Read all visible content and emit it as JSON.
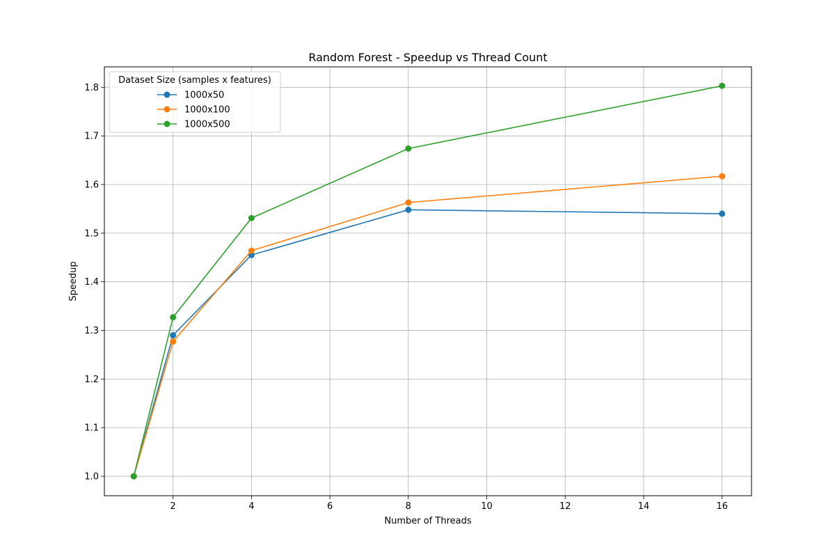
{
  "chart_data": {
    "type": "line",
    "title": "Random Forest - Speedup vs Thread Count",
    "xlabel": "Number of Threads",
    "ylabel": "Speedup",
    "xlim": [
      0.25,
      16.75
    ],
    "ylim": [
      0.96,
      1.842
    ],
    "xticks": [
      2,
      4,
      6,
      8,
      10,
      12,
      14,
      16
    ],
    "yticks": [
      1.0,
      1.1,
      1.2,
      1.3,
      1.4,
      1.5,
      1.6,
      1.7,
      1.8
    ],
    "grid": true,
    "legend": {
      "title": "Dataset Size (samples x features)",
      "position": "top-left"
    },
    "x": [
      1,
      2,
      4,
      8,
      16
    ],
    "series": [
      {
        "name": "1000x50",
        "color": "#1f77b4",
        "values": [
          1.0,
          1.29,
          1.455,
          1.548,
          1.54
        ]
      },
      {
        "name": "1000x100",
        "color": "#ff7f0e",
        "values": [
          1.0,
          1.277,
          1.464,
          1.563,
          1.617
        ]
      },
      {
        "name": "1000x500",
        "color": "#2ca02c",
        "values": [
          1.0,
          1.327,
          1.531,
          1.674,
          1.803
        ]
      }
    ]
  }
}
